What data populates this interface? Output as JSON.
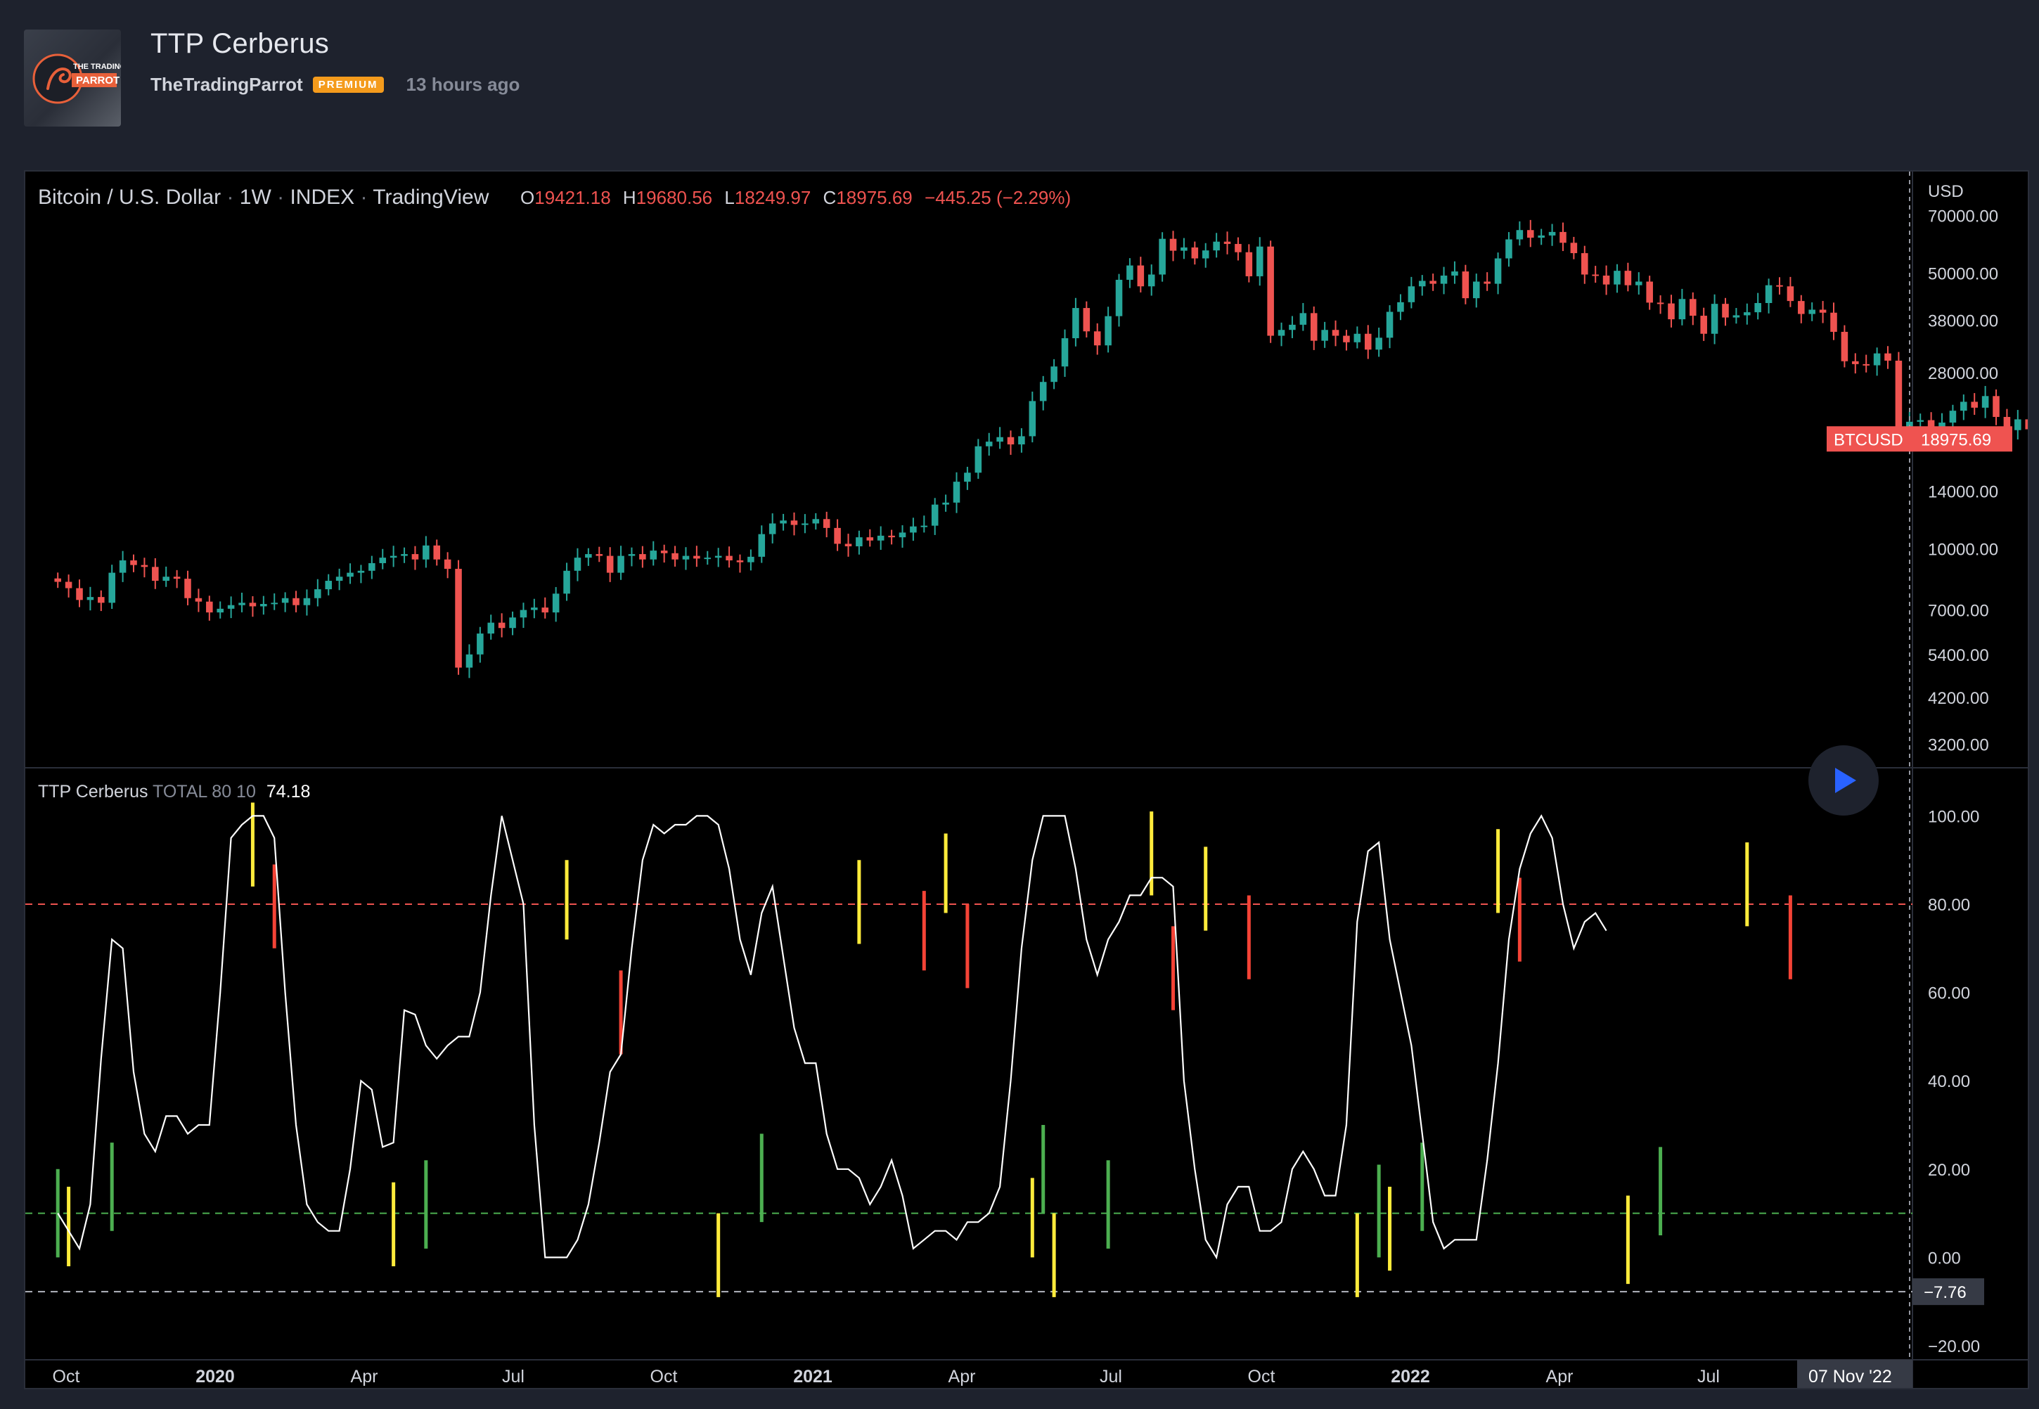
{
  "header": {
    "title": "TTP Cerberus",
    "author": "TheTradingParrot",
    "badge": "PREMIUM",
    "time_ago": "13 hours ago",
    "avatar_line1": "THE TRADING",
    "avatar_line2": "PARROT"
  },
  "legend": {
    "symbol": "Bitcoin / U.S. Dollar",
    "interval": "1W",
    "exchange": "INDEX",
    "source": "TradingView",
    "o_label": "O",
    "o_value": "19421.18",
    "h_label": "H",
    "h_value": "19680.56",
    "l_label": "L",
    "l_value": "18249.97",
    "c_label": "C",
    "c_value": "18975.69",
    "change": "−445.25 (−2.29%)"
  },
  "price_scale": {
    "currency": "USD",
    "ticks": [
      "70000.00",
      "50000.00",
      "38000.00",
      "28000.00",
      "14000.00",
      "10000.00",
      "7000.00",
      "5400.00",
      "4200.00",
      "3200.00"
    ],
    "last_label": "BTCUSD",
    "last_value": "18975.69"
  },
  "indicator": {
    "name": "TTP Cerberus",
    "params": "TOTAL 80 10",
    "value": "74.18",
    "ticks": [
      "100.00",
      "80.00",
      "60.00",
      "40.00",
      "20.00",
      "0.00",
      "−20.00"
    ],
    "marker_value": "−7.76"
  },
  "time_axis": {
    "labels": [
      "Oct",
      "2020",
      "Apr",
      "Jul",
      "Oct",
      "2021",
      "Apr",
      "Jul",
      "Oct",
      "2022",
      "Apr",
      "Jul"
    ],
    "bold": [
      false,
      true,
      false,
      false,
      false,
      true,
      false,
      false,
      false,
      true,
      false,
      false
    ],
    "crosshair_label": "07 Nov '22"
  },
  "colors": {
    "up": "#26a69a",
    "down": "#ef5350",
    "yellow_signal": "#ffeb3b",
    "green_signal": "#4caf50",
    "red_signal": "#f44336",
    "oscillator_line": "#ffffff",
    "upper_band": "#ef5350",
    "lower_band": "#4caf50"
  },
  "chart_data": [
    {
      "type": "candlestick",
      "title": "Bitcoin / U.S. Dollar · 1W · INDEX · TradingView",
      "ylabel": "USD",
      "log_scale": true,
      "ylim": [
        3000,
        80000
      ],
      "x_range": [
        "2019-09-16",
        "2022-11-07"
      ],
      "series": [
        {
          "name": "BTCUSD",
          "close": [
            8250,
            7950,
            7420,
            7550,
            7300,
            8700,
            9350,
            9100,
            9000,
            8300,
            8500,
            8400,
            7500,
            7350,
            6900,
            7050,
            7200,
            7300,
            7150,
            7250,
            7300,
            7500,
            7200,
            7500,
            7900,
            8300,
            8500,
            8700,
            8800,
            9200,
            9500,
            9600,
            9700,
            9400,
            10200,
            9400,
            8900,
            5000,
            5400,
            6100,
            6500,
            6300,
            6700,
            7000,
            7100,
            6900,
            7700,
            8800,
            9500,
            9700,
            9600,
            8700,
            9600,
            9700,
            9400,
            9900,
            9750,
            9400,
            9600,
            9450,
            9500,
            9600,
            9350,
            9250,
            9550,
            10900,
            11600,
            11800,
            11500,
            11600,
            11900,
            11300,
            10300,
            10150,
            10700,
            10500,
            10800,
            10700,
            11000,
            11400,
            11450,
            12950,
            13100,
            14800,
            15600,
            18200,
            18700,
            19200,
            18400,
            19300,
            23700,
            26500,
            29000,
            34200,
            40800,
            35600,
            32800,
            38900,
            48100,
            52300,
            46300,
            49600,
            61100,
            57000,
            58100,
            54500,
            57100,
            60100,
            59300,
            56500,
            49100,
            58400,
            34700,
            35900,
            37000,
            39600,
            33700,
            35900,
            34700,
            33400,
            35100,
            32000,
            34300,
            39900,
            42200,
            46300,
            47800,
            47000,
            49300,
            50500,
            43200,
            47600,
            47000,
            54500,
            60900,
            64300,
            61500,
            62300,
            63600,
            59700,
            56200,
            49600,
            49300,
            46800,
            50700,
            46600,
            47600,
            42100,
            41900,
            38200,
            43000,
            39000,
            35100,
            41800,
            38600,
            39100,
            39800,
            42000,
            46600,
            46300,
            42500,
            39400,
            40400,
            39700,
            35500,
            29900,
            29400,
            29200,
            31300,
            30000,
            19800,
            21000,
            21200,
            20200,
            20900,
            22400,
            23600,
            22800,
            24400,
            21600,
            20000,
            21300,
            20100,
            20500,
            20000,
            19000,
            19300,
            19000
          ]
        }
      ]
    },
    {
      "type": "line",
      "title": "TTP Cerberus TOTAL 80 10",
      "ylim": [
        -20,
        105
      ],
      "bands": [
        80,
        10
      ],
      "series": [
        {
          "name": "TTP Cerberus",
          "x_start": "2019-09-16",
          "step": "1W",
          "values": [
            10,
            6,
            2,
            12,
            45,
            72,
            70,
            42,
            28,
            24,
            32,
            32,
            28,
            30,
            30,
            60,
            95,
            98,
            100,
            100,
            95,
            60,
            30,
            12,
            8,
            6,
            6,
            20,
            40,
            38,
            25,
            26,
            56,
            55,
            48,
            45,
            48,
            50,
            50,
            60,
            82,
            100,
            90,
            80,
            30,
            0,
            0,
            0,
            4,
            12,
            26,
            42,
            46,
            70,
            90,
            98,
            96,
            98,
            98,
            100,
            100,
            98,
            88,
            72,
            64,
            78,
            84,
            68,
            52,
            44,
            44,
            28,
            20,
            20,
            18,
            12,
            16,
            22,
            14,
            2,
            4,
            6,
            6,
            4,
            8,
            8,
            10,
            16,
            40,
            70,
            90,
            100,
            100,
            100,
            88,
            72,
            64,
            72,
            76,
            82,
            82,
            86,
            86,
            84,
            40,
            20,
            4,
            0,
            12,
            16,
            16,
            6,
            6,
            8,
            20,
            24,
            20,
            14,
            14,
            30,
            76,
            92,
            94,
            72,
            60,
            48,
            28,
            8,
            2,
            4,
            4,
            4,
            22,
            44,
            72,
            88,
            96,
            100,
            95,
            80,
            70,
            76,
            78,
            74
          ]
        }
      ],
      "signals": {
        "yellow": [
          {
            "x": "2019-09-23",
            "low": -2,
            "high": 16
          },
          {
            "x": "2020-01-20",
            "low": 84,
            "high": 103
          },
          {
            "x": "2020-04-20",
            "low": -2,
            "high": 17
          },
          {
            "x": "2020-08-10",
            "low": 72,
            "high": 90
          },
          {
            "x": "2020-11-16",
            "low": -9,
            "high": 10
          },
          {
            "x": "2021-02-15",
            "low": 71,
            "high": 90
          },
          {
            "x": "2021-04-12",
            "low": 78,
            "high": 96
          },
          {
            "x": "2021-06-07",
            "low": 0,
            "high": 18
          },
          {
            "x": "2021-06-21",
            "low": -9,
            "high": 10
          },
          {
            "x": "2021-08-23",
            "low": 82,
            "high": 101
          },
          {
            "x": "2021-09-27",
            "low": 74,
            "high": 93
          },
          {
            "x": "2022-01-03",
            "low": -9,
            "high": 10
          },
          {
            "x": "2022-01-24",
            "low": -3,
            "high": 16
          },
          {
            "x": "2022-04-04",
            "low": 78,
            "high": 97
          },
          {
            "x": "2022-06-27",
            "low": -6,
            "high": 14
          },
          {
            "x": "2022-09-12",
            "low": 75,
            "high": 94
          }
        ],
        "green": [
          {
            "x": "2019-09-16",
            "low": 0,
            "high": 20
          },
          {
            "x": "2019-10-21",
            "low": 6,
            "high": 26
          },
          {
            "x": "2020-05-11",
            "low": 2,
            "high": 22
          },
          {
            "x": "2020-12-14",
            "low": 8,
            "high": 28
          },
          {
            "x": "2021-06-14",
            "low": 10,
            "high": 30
          },
          {
            "x": "2021-07-26",
            "low": 2,
            "high": 22
          },
          {
            "x": "2022-01-17",
            "low": 0,
            "high": 21
          },
          {
            "x": "2022-02-14",
            "low": 6,
            "high": 26
          },
          {
            "x": "2022-07-18",
            "low": 5,
            "high": 25
          }
        ],
        "red": [
          {
            "x": "2020-02-03",
            "low": 70,
            "high": 89
          },
          {
            "x": "2020-09-14",
            "low": 46,
            "high": 65
          },
          {
            "x": "2021-03-29",
            "low": 65,
            "high": 83
          },
          {
            "x": "2021-04-26",
            "low": 61,
            "high": 80
          },
          {
            "x": "2021-09-06",
            "low": 56,
            "high": 75
          },
          {
            "x": "2021-10-25",
            "low": 63,
            "high": 82
          },
          {
            "x": "2022-04-18",
            "low": 67,
            "high": 86
          },
          {
            "x": "2022-10-10",
            "low": 63,
            "high": 82
          }
        ]
      }
    }
  ]
}
